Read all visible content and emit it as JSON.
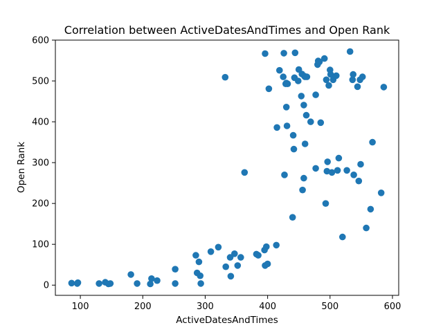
{
  "chart_data": {
    "type": "scatter",
    "title": "Correlation between ActiveDatesAndTimes and Open Rank",
    "xlabel": "ActiveDatesAndTimes",
    "ylabel": "Open Rank",
    "xlim": [
      60,
      610
    ],
    "ylim": [
      -25,
      600
    ],
    "xticks": [
      100,
      200,
      300,
      400,
      500,
      600
    ],
    "yticks": [
      0,
      100,
      200,
      300,
      400,
      500,
      600
    ],
    "grid": false,
    "legend": "none",
    "marker_color": "#1f77b4",
    "x": [
      86,
      95,
      96,
      130,
      140,
      145,
      148,
      181,
      191,
      212,
      214,
      223,
      252,
      252,
      285,
      287,
      290,
      292,
      293,
      309,
      321,
      332,
      333,
      340,
      341,
      347,
      352,
      357,
      363,
      382,
      385,
      395,
      396,
      396,
      398,
      400,
      402,
      414,
      415,
      419,
      425,
      426,
      427,
      429,
      430,
      430,
      431,
      432,
      440,
      441,
      442,
      443,
      444,
      449,
      450,
      454,
      455,
      456,
      458,
      458,
      459,
      460,
      460,
      462,
      463,
      469,
      477,
      477,
      480,
      481,
      483,
      485,
      491,
      493,
      494,
      495,
      496,
      498,
      500,
      501,
      503,
      505,
      510,
      512,
      514,
      520,
      527,
      532,
      536,
      537,
      538,
      544,
      546,
      548,
      549,
      552,
      558,
      565,
      568,
      582,
      586
    ],
    "y": [
      5,
      4,
      6,
      4,
      7,
      3,
      4,
      26,
      4,
      3,
      16,
      11,
      4,
      39,
      73,
      30,
      57,
      23,
      4,
      82,
      93,
      509,
      45,
      68,
      22,
      77,
      48,
      68,
      276,
      76,
      73,
      86,
      567,
      48,
      94,
      52,
      481,
      98,
      386,
      526,
      510,
      568,
      270,
      493,
      436,
      495,
      390,
      493,
      166,
      367,
      333,
      508,
      569,
      500,
      528,
      463,
      517,
      233,
      441,
      262,
      512,
      346,
      510,
      416,
      510,
      400,
      286,
      466,
      540,
      549,
      547,
      398,
      555,
      200,
      503,
      279,
      302,
      489,
      527,
      516,
      276,
      503,
      513,
      281,
      311,
      118,
      281,
      572,
      503,
      516,
      270,
      486,
      255,
      503,
      296,
      510,
      140,
      186,
      350,
      226,
      485
    ]
  }
}
